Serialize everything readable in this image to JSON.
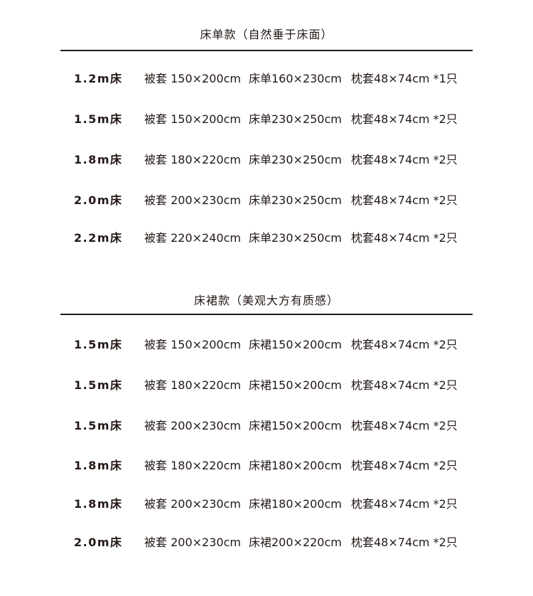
{
  "sections": [
    {
      "title": "床单款（自然垂于床面）",
      "rows": [
        {
          "size": "1.2m床",
          "duvet": "被套 150×200cm",
          "sheet": "床单160×230cm",
          "pillow": "枕套48×74cm *1只"
        },
        {
          "size": "1.5m床",
          "duvet": "被套 150×200cm",
          "sheet": "床单230×250cm",
          "pillow": "枕套48×74cm *2只"
        },
        {
          "size": "1.8m床",
          "duvet": "被套 180×220cm",
          "sheet": "床单230×250cm",
          "pillow": "枕套48×74cm *2只"
        },
        {
          "size": "2.0m床",
          "duvet": "被套 200×230cm",
          "sheet": "床单230×250cm",
          "pillow": "枕套48×74cm *2只"
        },
        {
          "size": "2.2m床",
          "duvet": "被套 220×240cm",
          "sheet": "床单230×250cm",
          "pillow": "枕套48×74cm *2只"
        }
      ]
    },
    {
      "title": "床裙款（美观大方有质感）",
      "rows": [
        {
          "size": "1.5m床",
          "duvet": "被套 150×200cm",
          "sheet": "床裙150×200cm",
          "pillow": "枕套48×74cm *2只"
        },
        {
          "size": "1.5m床",
          "duvet": "被套 180×220cm",
          "sheet": "床裙150×200cm",
          "pillow": "枕套48×74cm *2只"
        },
        {
          "size": "1.5m床",
          "duvet": "被套 200×230cm",
          "sheet": "床裙150×200cm",
          "pillow": "枕套48×74cm *2只"
        },
        {
          "size": "1.8m床",
          "duvet": "被套 180×220cm",
          "sheet": "床裙180×200cm",
          "pillow": "枕套48×74cm *2只"
        },
        {
          "size": "1.8m床",
          "duvet": "被套 200×230cm",
          "sheet": "床裙180×200cm",
          "pillow": "枕套48×74cm *2只"
        },
        {
          "size": "2.0m床",
          "duvet": "被套 200×230cm",
          "sheet": "床裙200×220cm",
          "pillow": "枕套48×74cm *2只"
        }
      ]
    }
  ]
}
